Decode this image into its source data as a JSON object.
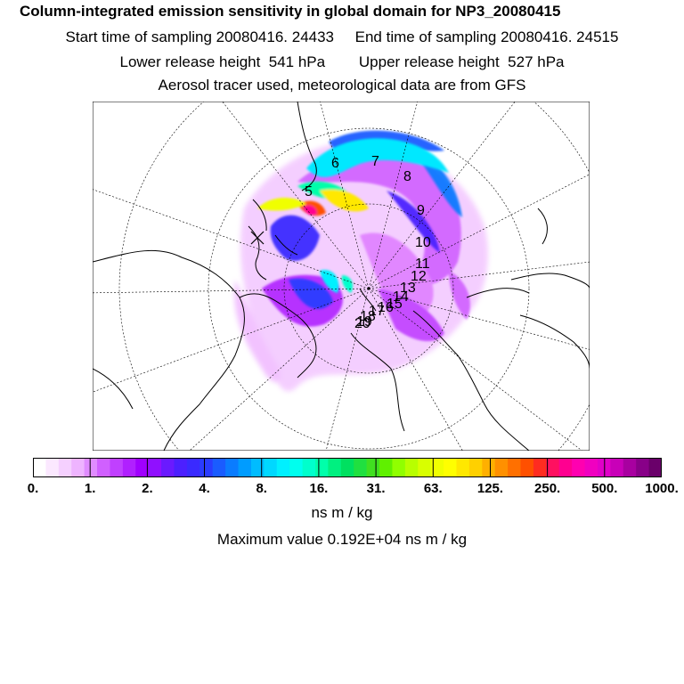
{
  "title": "Column-integrated emission sensitivity in global domain for NP3_20080415",
  "sampling_line": "Start time of sampling 20080416. 24433     End time of sampling 20080416. 24515",
  "release_line": "Lower release height  541 hPa        Upper release height  527 hPa",
  "info_line": "Aerosol tracer used, meteorological data are from GFS",
  "day_labels": [
    "5",
    "6",
    "7",
    "8",
    "9",
    "10",
    "11",
    "12",
    "13",
    "14",
    "15",
    "16",
    "17",
    "18",
    "19",
    "20"
  ],
  "colorbar": {
    "ticks": [
      "0.",
      "1.",
      "2.",
      "4.",
      "8.",
      "16.",
      "31.",
      "63.",
      "125.",
      "250.",
      "500.",
      "1000."
    ],
    "colors": [
      "#ffffff",
      "#fbe8ff",
      "#f5d0ff",
      "#eeb4ff",
      "#e08cff",
      "#d060ff",
      "#c040ff",
      "#b020ff",
      "#a000ff",
      "#9010ff",
      "#6a1aff",
      "#4c20ff",
      "#3a2aff",
      "#2a3cff",
      "#1a5cff",
      "#0a7cff",
      "#009cff",
      "#00bcff",
      "#00d8ff",
      "#00f0ff",
      "#00ffee",
      "#00ffcc",
      "#00ffaa",
      "#00f080",
      "#00e060",
      "#20e040",
      "#40e020",
      "#60f000",
      "#90ff00",
      "#b8ff00",
      "#d8ff00",
      "#f0ff00",
      "#ffff00",
      "#ffe800",
      "#ffd000",
      "#ffb000",
      "#ff9000",
      "#ff7000",
      "#ff5000",
      "#ff2c20",
      "#ff1060",
      "#ff0090",
      "#ff00b0",
      "#f000c0",
      "#e000c8",
      "#c800b8",
      "#a800a0",
      "#880088",
      "#6a006a"
    ]
  },
  "units": "ns m / kg",
  "max_value_line": "Maximum value  0.192E+04 ns m / kg"
}
